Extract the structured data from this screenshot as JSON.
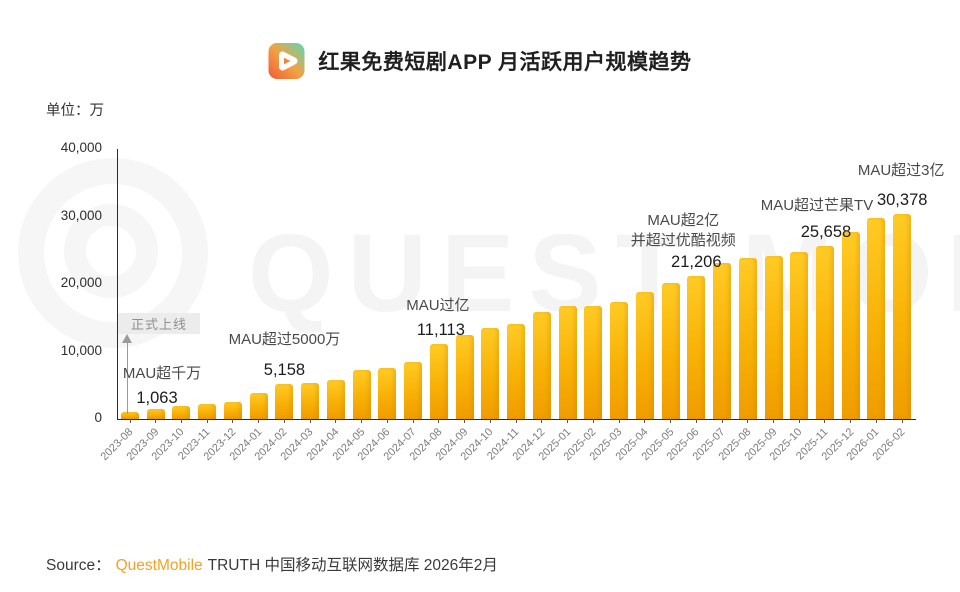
{
  "header": {
    "title": "红果免费短剧APP 月活跃用户规模趋势",
    "app_icon": "hongguo-app-icon"
  },
  "unit_label": "单位：万",
  "watermark": {
    "text": "QUEST MOBILE"
  },
  "chart_data": {
    "type": "bar",
    "title": "红果免费短剧APP 月活跃用户规模趋势",
    "unit": "万",
    "ylim": [
      0,
      40000
    ],
    "yticks": [
      0,
      10000,
      20000,
      30000,
      40000
    ],
    "ytick_labels": [
      "0",
      "10,000",
      "20,000",
      "30,000",
      "40,000"
    ],
    "grid": false,
    "bar_color_top": "#FFCB25",
    "bar_color_bottom": "#F09C00",
    "categories": [
      "2023-08",
      "2023-09",
      "2023-10",
      "2023-11",
      "2023-12",
      "2024-01",
      "2024-02",
      "2024-03",
      "2024-04",
      "2024-05",
      "2024-06",
      "2024-07",
      "2024-08",
      "2024-09",
      "2024-10",
      "2024-11",
      "2024-12",
      "2025-01",
      "2025-02",
      "2025-03",
      "2025-04",
      "2025-05",
      "2025-06",
      "2025-07",
      "2025-08",
      "2025-09",
      "2025-10",
      "2025-11",
      "2025-12",
      "2026-01",
      "2026-02"
    ],
    "values": [
      1063,
      1450,
      1900,
      2300,
      2500,
      3850,
      5158,
      5400,
      5800,
      7200,
      7600,
      8400,
      11113,
      12500,
      13550,
      14050,
      15900,
      16800,
      16700,
      17300,
      18800,
      20100,
      21206,
      23100,
      23850,
      24100,
      24700,
      25658,
      27700,
      29800,
      30378
    ],
    "annotations": [
      {
        "month": "2023-08",
        "lines": [
          "MAU超千万"
        ],
        "value": "1,063"
      },
      {
        "month": "2024-02",
        "lines": [
          "MAU超过5000万"
        ],
        "value": "5,158"
      },
      {
        "month": "2024-08",
        "lines": [
          "MAU过亿"
        ],
        "value": "11,113"
      },
      {
        "month": "2025-06",
        "lines": [
          "MAU超2亿",
          "并超过优酷视频"
        ],
        "value": "21,206"
      },
      {
        "month": "2025-11",
        "lines": [
          "MAU超过芒果TV"
        ],
        "value": "25,658"
      },
      {
        "month": "2026-02",
        "lines": [
          "MAU超过3亿"
        ],
        "value": "30,378"
      }
    ],
    "launch_callout": {
      "text": "正式上线",
      "month": "2023-08"
    }
  },
  "footer": {
    "source_label": "Source：",
    "brand": "QuestMobile",
    "rest": "TRUTH 中国移动互联网数据库 2026年2月"
  }
}
